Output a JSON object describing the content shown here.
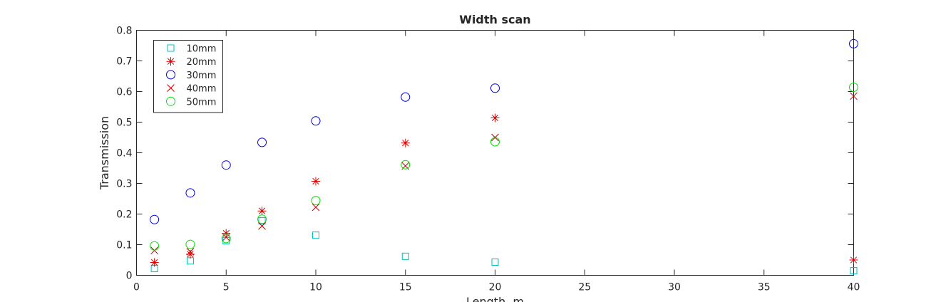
{
  "chart_data": {
    "type": "scatter",
    "title": "Width scan",
    "xlabel": "Length, m",
    "ylabel": "Transmission",
    "xlim": [
      0,
      40
    ],
    "ylim": [
      0,
      0.8
    ],
    "xticks": [
      0,
      5,
      10,
      15,
      20,
      25,
      30,
      35,
      40
    ],
    "xtick_labels": [
      "0",
      "5",
      "10",
      "15",
      "20",
      "25",
      "30",
      "35",
      "40"
    ],
    "yticks": [
      0,
      0.1,
      0.2,
      0.3,
      0.4,
      0.5,
      0.6,
      0.7,
      0.8
    ],
    "ytick_labels": [
      "0",
      "0.1",
      "0.2",
      "0.3",
      "0.4",
      "0.5",
      "0.6",
      "0.7",
      "0.8"
    ],
    "grid": false,
    "legend_position": "top-left",
    "x": [
      1,
      3,
      5,
      7,
      10,
      15,
      20,
      40
    ],
    "series": [
      {
        "name": "10mm",
        "marker": "square",
        "color": "#00bfbf",
        "values": [
          0.022,
          0.047,
          0.113,
          0.178,
          0.131,
          0.062,
          0.043,
          0.015
        ]
      },
      {
        "name": "20mm",
        "marker": "asterisk",
        "color": "#e00000",
        "values": [
          0.042,
          0.069,
          0.137,
          0.21,
          0.307,
          0.432,
          0.514,
          0.05
        ]
      },
      {
        "name": "30mm",
        "marker": "circle",
        "color": "#0000e0",
        "values": [
          0.182,
          0.269,
          0.36,
          0.434,
          0.504,
          0.582,
          0.611,
          0.756
        ]
      },
      {
        "name": "40mm",
        "marker": "cross",
        "color": "#c00000",
        "values": [
          0.081,
          0.077,
          0.124,
          0.161,
          0.222,
          0.357,
          0.45,
          0.585
        ]
      },
      {
        "name": "50mm",
        "marker": "circle",
        "color": "#00e000",
        "values": [
          0.096,
          0.101,
          0.12,
          0.183,
          0.244,
          0.361,
          0.436,
          0.614
        ]
      }
    ]
  }
}
